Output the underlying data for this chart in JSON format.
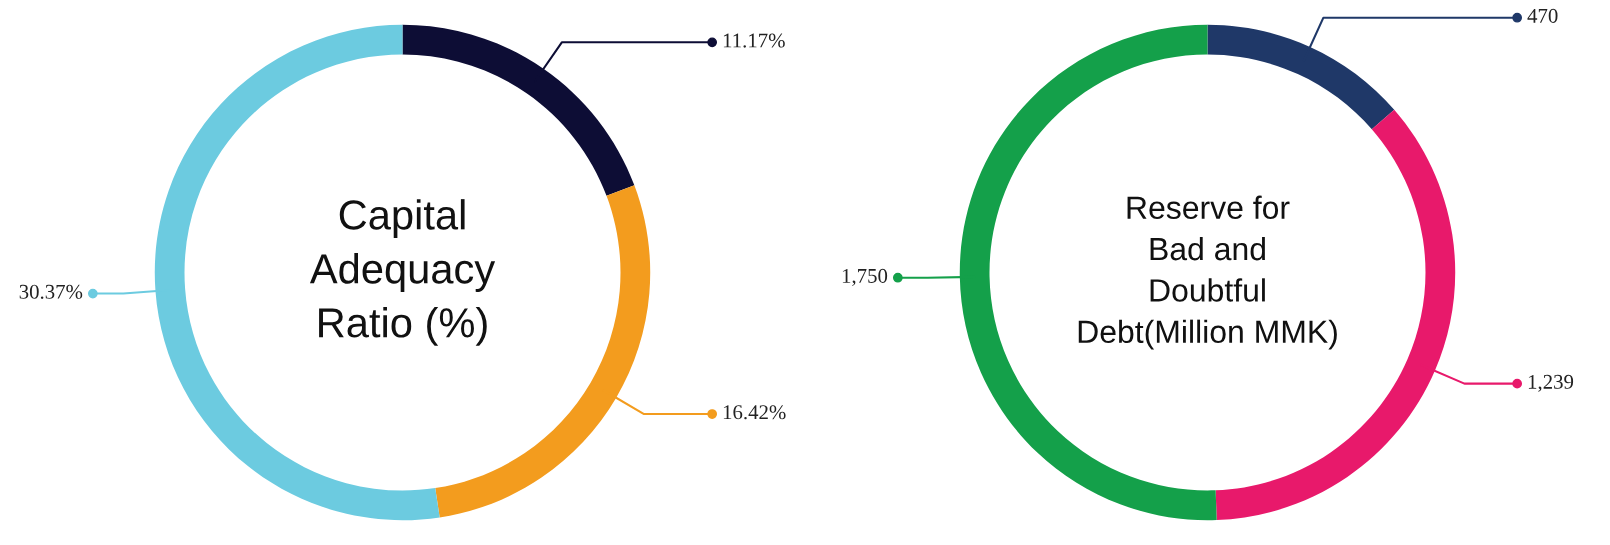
{
  "chart_data": [
    {
      "type": "donut",
      "title": "Capital\nAdequacy\nRatio (%)",
      "categories": [
        null,
        null,
        null
      ],
      "values": [
        11.17,
        16.42,
        30.37
      ],
      "colors": [
        "#0d0d35",
        "#f39c1e",
        "#6ccbe0"
      ],
      "value_labels": [
        "11.17%",
        "16.42%",
        "30.37%"
      ]
    },
    {
      "type": "donut",
      "title": "Reserve for\nBad and\nDoubtful\nDebt(Million MMK)",
      "categories": [
        null,
        null,
        null
      ],
      "values": [
        470,
        1239,
        1750
      ],
      "colors": [
        "#1f3868",
        "#e8196b",
        "#14a04a"
      ],
      "value_labels": [
        "470",
        "1,239",
        "1,750"
      ]
    }
  ]
}
